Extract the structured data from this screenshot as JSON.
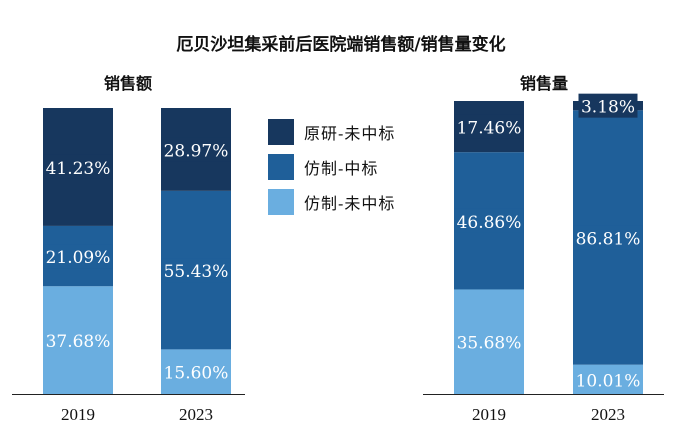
{
  "title": "厄贝沙坦集采前后医院端销售额/销售量变化",
  "legend": [
    {
      "label": "原研-未中标",
      "color": "#17375e"
    },
    {
      "label": "仿制-中标",
      "color": "#1f5f99"
    },
    {
      "label": "仿制-未中标",
      "color": "#6aaee0"
    }
  ],
  "chart_data": [
    {
      "type": "bar",
      "stacked": true,
      "title": "销售额",
      "categories": [
        "2019",
        "2023"
      ],
      "series": [
        {
          "name": "仿制-未中标",
          "values": [
            37.68,
            15.6
          ],
          "labels": [
            "37.68%",
            "15.60%"
          ],
          "color": "#6aaee0"
        },
        {
          "name": "仿制-中标",
          "values": [
            21.09,
            55.43
          ],
          "labels": [
            "21.09%",
            "55.43%"
          ],
          "color": "#1f5f99"
        },
        {
          "name": "原研-未中标",
          "values": [
            41.23,
            28.97
          ],
          "labels": [
            "41.23%",
            "28.97%"
          ],
          "color": "#17375e"
        }
      ],
      "ylim": [
        0,
        100
      ],
      "grid": false
    },
    {
      "type": "bar",
      "stacked": true,
      "title": "销售量",
      "categories": [
        "2019",
        "2023"
      ],
      "series": [
        {
          "name": "仿制-未中标",
          "values": [
            35.68,
            10.01
          ],
          "labels": [
            "35.68%",
            "10.01%"
          ],
          "color": "#6aaee0"
        },
        {
          "name": "仿制-中标",
          "values": [
            46.86,
            86.81
          ],
          "labels": [
            "46.86%",
            "86.81%"
          ],
          "color": "#1f5f99"
        },
        {
          "name": "原研-未中标",
          "values": [
            17.46,
            3.18
          ],
          "labels": [
            "17.46%",
            "3.18%"
          ],
          "color": "#17375e"
        }
      ],
      "ylim": [
        0,
        100
      ],
      "grid": false
    }
  ]
}
